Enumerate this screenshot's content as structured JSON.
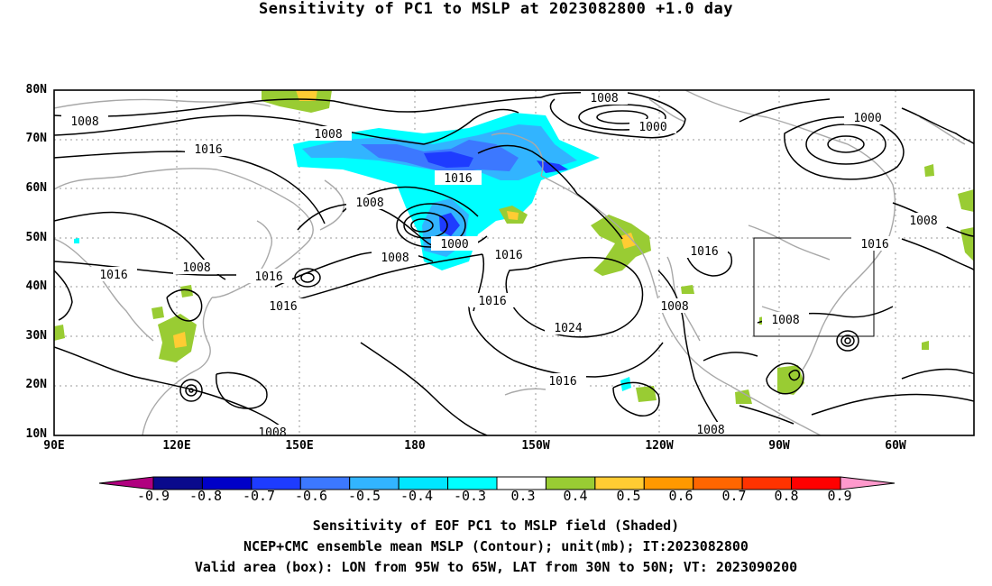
{
  "title": "Sensitivity of PC1 to MSLP at 2023082800 +1.0 day",
  "map": {
    "lat_labels": [
      "80N",
      "70N",
      "60N",
      "50N",
      "40N",
      "30N",
      "20N",
      "10N"
    ],
    "lon_labels": [
      "90E",
      "120E",
      "150E",
      "180",
      "150W",
      "120W",
      "90W",
      "60W"
    ],
    "contour_labels": [
      "1008",
      "1008",
      "1016",
      "1000",
      "1000",
      "1016",
      "1008",
      "1000",
      "1008",
      "1016",
      "1008",
      "1016",
      "1008",
      "1016",
      "1016",
      "1016",
      "1008",
      "1024",
      "1016",
      "1008",
      "1008",
      "1008"
    ],
    "valid_box": {
      "lon_from": "95W",
      "lon_to": "65W",
      "lat_from": "30N",
      "lat_to": "50N"
    }
  },
  "colorbar": {
    "labels": [
      "-0.9",
      "-0.8",
      "-0.7",
      "-0.6",
      "-0.5",
      "-0.4",
      "-0.3",
      "0.3",
      "0.4",
      "0.5",
      "0.6",
      "0.7",
      "0.8",
      "0.9"
    ],
    "colors": [
      "#b0007f",
      "#0a0a8c",
      "#0000c8",
      "#1e3cff",
      "#3c78ff",
      "#32b4ff",
      "#00e6ff",
      "#00ffff",
      "#ffffff",
      "#99cc33",
      "#ffcc33",
      "#ff9900",
      "#ff6600",
      "#ff3300",
      "#ff0000",
      "#ff99cc"
    ]
  },
  "caption": {
    "line1": "Sensitivity of EOF PC1 to MSLP field (Shaded)",
    "line2": "NCEP+CMC ensemble mean MSLP (Contour); unit(mb); IT:2023082800",
    "line3": "Valid area (box): LON from 95W to 65W, LAT from 30N to 50N; VT: 2023090200"
  }
}
